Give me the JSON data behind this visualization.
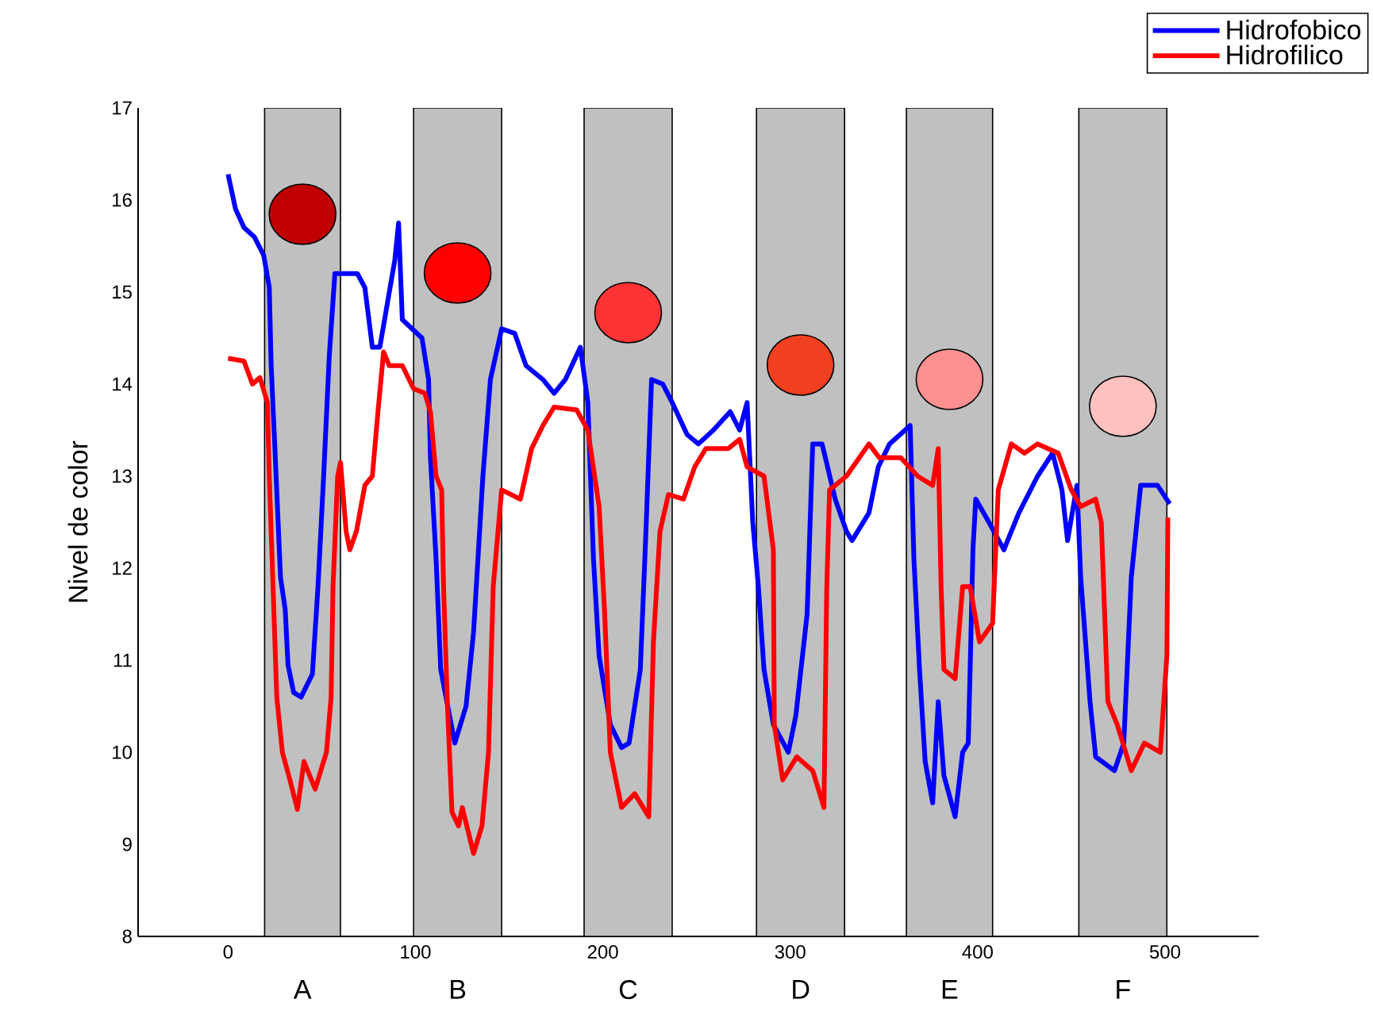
{
  "chart_data": {
    "type": "line",
    "ylabel": "Nivel de color",
    "xlim": [
      -48,
      550
    ],
    "ylim": [
      8,
      17
    ],
    "xticks": [
      0,
      100,
      200,
      300,
      400,
      500
    ],
    "yticks": [
      8,
      9,
      10,
      11,
      12,
      13,
      14,
      15,
      16,
      17
    ],
    "grid": false,
    "legend": "top right",
    "marker": "none",
    "line_style": "solid",
    "bands": [
      {
        "axis": "x",
        "from": 19.5,
        "to": 60,
        "label": "A",
        "color": "#c0c0c0"
      },
      {
        "axis": "x",
        "from": 99,
        "to": 146,
        "label": "B",
        "color": "#c0c0c0"
      },
      {
        "axis": "x",
        "from": 190,
        "to": 237,
        "label": "C",
        "color": "#c0c0c0"
      },
      {
        "axis": "x",
        "from": 282,
        "to": 329,
        "label": "D",
        "color": "#c0c0c0"
      },
      {
        "axis": "x",
        "from": 362,
        "to": 408,
        "label": "E",
        "color": "#c0c0c0"
      },
      {
        "axis": "x",
        "from": 454,
        "to": 501,
        "label": "F",
        "color": "#c0c0c0"
      }
    ],
    "series": [
      {
        "name": "Hidrofobico",
        "color": "#0000ff",
        "x": [
          0,
          4,
          8.5,
          14,
          19,
          22,
          23,
          25,
          28,
          30.5,
          32,
          35,
          39,
          45,
          48,
          51,
          54,
          57,
          69,
          73,
          77,
          81,
          89,
          91,
          93,
          103.5,
          107,
          108,
          111,
          113.5,
          121,
          127,
          131,
          136,
          140,
          146,
          153,
          159,
          168,
          174,
          180,
          188,
          192,
          195,
          198,
          204,
          210,
          214,
          220,
          223,
          226,
          232,
          237,
          245,
          251,
          259,
          268,
          273,
          277,
          280,
          283,
          286,
          291,
          299,
          303,
          309,
          312,
          317,
          324,
          330,
          333,
          342,
          347,
          353,
          364,
          366,
          369,
          372,
          376,
          379,
          382,
          388,
          392,
          395,
          396,
          397.5,
          399,
          406,
          414,
          422,
          432,
          440,
          445,
          448,
          453,
          455,
          460,
          463,
          473,
          478,
          482,
          487,
          496,
          502.5
        ],
        "values": [
          16.28,
          15.9,
          15.7,
          15.6,
          15.4,
          15.05,
          14.2,
          13.3,
          11.9,
          11.55,
          10.95,
          10.65,
          10.6,
          10.85,
          11.8,
          13.0,
          14.3,
          15.2,
          15.2,
          15.05,
          14.4,
          14.4,
          15.35,
          15.75,
          14.7,
          14.5,
          14.05,
          13.2,
          12.1,
          10.9,
          10.1,
          10.5,
          11.3,
          13.0,
          14.05,
          14.6,
          14.55,
          14.2,
          14.05,
          13.9,
          14.05,
          14.4,
          13.8,
          12.1,
          11.05,
          10.3,
          10.05,
          10.1,
          10.9,
          12.4,
          14.05,
          14.0,
          13.8,
          13.45,
          13.35,
          13.5,
          13.7,
          13.5,
          13.8,
          12.5,
          11.8,
          10.9,
          10.3,
          10.0,
          10.4,
          11.5,
          13.35,
          13.35,
          12.75,
          12.4,
          12.3,
          12.6,
          13.1,
          13.35,
          13.55,
          12.1,
          10.9,
          9.9,
          9.45,
          10.55,
          9.75,
          9.3,
          10.0,
          10.1,
          10.9,
          12.2,
          12.75,
          12.5,
          12.2,
          12.6,
          13.0,
          13.25,
          12.85,
          12.3,
          12.9,
          11.9,
          10.55,
          9.95,
          9.8,
          10.1,
          11.9,
          12.9,
          12.9,
          12.7
        ]
      },
      {
        "name": "Hidrofilico",
        "color": "#ff0000",
        "x": [
          0,
          8.5,
          13,
          17,
          21,
          22,
          24,
          26,
          29,
          33,
          37,
          40.5,
          46.5,
          52.5,
          55,
          56,
          58.5,
          60,
          63,
          65,
          68.5,
          73,
          77,
          80,
          83,
          86,
          93,
          99,
          105,
          108,
          111,
          114,
          115,
          117,
          119.5,
          123,
          125,
          131,
          135.5,
          139,
          141.5,
          146,
          156,
          162,
          168,
          174,
          186,
          192,
          198,
          201,
          204,
          210,
          217,
          224.5,
          227,
          230.5,
          235,
          243,
          249,
          255,
          267,
          273,
          277,
          286,
          291,
          291.5,
          296,
          303.5,
          312,
          318,
          319.5,
          321,
          330,
          342,
          347.5,
          359,
          368,
          376,
          379,
          380.5,
          382,
          388,
          392,
          396,
          401,
          408,
          411,
          418,
          425,
          432,
          443,
          450,
          455,
          463,
          466,
          469.5,
          474.5,
          482,
          489,
          497.5,
          501,
          501.5
        ],
        "values": [
          14.28,
          14.25,
          14.0,
          14.07,
          13.8,
          13.0,
          11.8,
          10.6,
          10.0,
          9.7,
          9.38,
          9.9,
          9.6,
          10.0,
          10.6,
          11.8,
          13.0,
          13.15,
          12.4,
          12.2,
          12.4,
          12.9,
          13.0,
          13.7,
          14.35,
          14.2,
          14.2,
          13.95,
          13.9,
          13.7,
          13.0,
          12.85,
          11.8,
          10.55,
          9.35,
          9.2,
          9.4,
          8.9,
          9.2,
          10.0,
          11.8,
          12.85,
          12.75,
          13.3,
          13.55,
          13.75,
          13.72,
          13.5,
          12.67,
          11.5,
          10.0,
          9.4,
          9.55,
          9.3,
          11.2,
          12.4,
          12.8,
          12.75,
          13.1,
          13.3,
          13.3,
          13.4,
          13.1,
          13.0,
          12.2,
          10.3,
          9.7,
          9.95,
          9.8,
          9.4,
          11.8,
          12.85,
          13.0,
          13.35,
          13.2,
          13.2,
          13.0,
          12.9,
          13.3,
          11.8,
          10.9,
          10.8,
          11.8,
          11.8,
          11.2,
          11.4,
          12.85,
          13.35,
          13.25,
          13.35,
          13.25,
          12.85,
          12.67,
          12.75,
          12.5,
          10.55,
          10.3,
          9.8,
          10.1,
          10.0,
          11.05,
          12.55
        ]
      }
    ]
  }
}
